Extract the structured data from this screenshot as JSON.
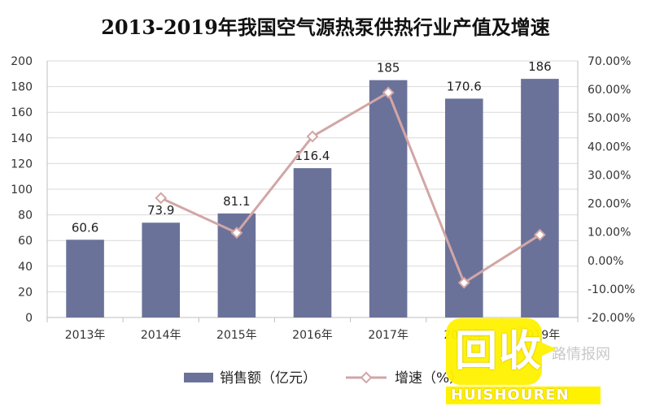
{
  "chart_data": {
    "type": "bar",
    "title": "2013-2019年我国空气源热泵供热行业产值及增速",
    "categories": [
      "2013年",
      "2014年",
      "2015年",
      "2016年",
      "2017年",
      "2018年",
      "2019年"
    ],
    "series": [
      {
        "name": "销售额（亿元）",
        "type": "bar",
        "axis": "left",
        "values": [
          60.6,
          73.9,
          81.1,
          116.4,
          185,
          170.6,
          186
        ],
        "labels": [
          "60.6",
          "73.9",
          "81.1",
          "116.4",
          "185",
          "170.6",
          "186"
        ],
        "color": "#6b7299"
      },
      {
        "name": "增速（%）",
        "type": "line",
        "axis": "right",
        "values": [
          null,
          21.9,
          9.7,
          43.5,
          58.9,
          -7.8,
          9.0
        ],
        "color": "#d2a6a6"
      }
    ],
    "y_left": {
      "min": 0,
      "max": 200,
      "step": 20,
      "tick_labels": [
        "0",
        "20",
        "40",
        "60",
        "80",
        "100",
        "120",
        "140",
        "160",
        "180",
        "200"
      ]
    },
    "y_right": {
      "min": -20,
      "max": 70,
      "step": 10,
      "tick_labels": [
        "-20.00%",
        "-10.00%",
        "0.00%",
        "10.00%",
        "20.00%",
        "30.00%",
        "40.00%",
        "50.00%",
        "60.00%",
        "70.00%"
      ]
    },
    "grid": true,
    "legend_position": "bottom"
  },
  "watermark": {
    "logo_text": "回收",
    "sub_text": "HUISHOUREN",
    "faint_text": "路情报网"
  }
}
